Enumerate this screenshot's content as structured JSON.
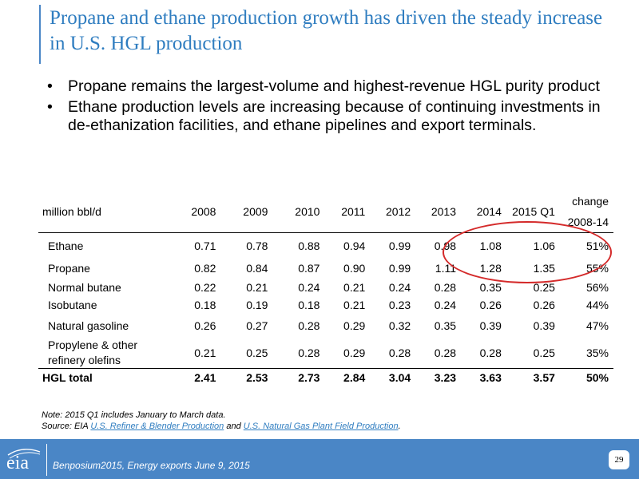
{
  "slide": {
    "title": "Propane and ethane production growth has driven the steady increase in U.S. HGL production",
    "bullets": [
      "Propane remains the largest-volume and highest-revenue HGL purity product",
      "Ethane production levels are increasing because of continuing investments in de-ethanization facilities, and ethane pipelines and export terminals."
    ]
  },
  "table": {
    "unit_label": "million bbl/d",
    "columns": [
      "2008",
      "2009",
      "2010",
      "2011",
      "2012",
      "2013",
      "2014",
      "2015 Q1"
    ],
    "change_header": [
      "change",
      "2008-14"
    ],
    "rows": [
      {
        "name": "Ethane",
        "values": [
          "0.71",
          "0.78",
          "0.88",
          "0.94",
          "0.99",
          "0.98",
          "1.08",
          "1.06"
        ],
        "change": "51%"
      },
      {
        "name": "Propane",
        "values": [
          "0.82",
          "0.84",
          "0.87",
          "0.90",
          "0.99",
          "1.11",
          "1.28",
          "1.35"
        ],
        "change": "55%"
      },
      {
        "name": "Normal butane",
        "values": [
          "0.22",
          "0.21",
          "0.24",
          "0.21",
          "0.24",
          "0.28",
          "0.35",
          "0.25"
        ],
        "change": "56%"
      },
      {
        "name": "Isobutane",
        "values": [
          "0.18",
          "0.19",
          "0.18",
          "0.21",
          "0.23",
          "0.24",
          "0.26",
          "0.26"
        ],
        "change": "44%"
      },
      {
        "name": "Natural gasoline",
        "values": [
          "0.26",
          "0.27",
          "0.28",
          "0.29",
          "0.32",
          "0.35",
          "0.39",
          "0.39"
        ],
        "change": "47%"
      },
      {
        "name_lines": [
          "Propylene & other",
          "refinery olefins"
        ],
        "values": [
          "0.21",
          "0.25",
          "0.28",
          "0.29",
          "0.28",
          "0.28",
          "0.28",
          "0.25"
        ],
        "change": "35%"
      }
    ],
    "total": {
      "name": "HGL total",
      "values": [
        "2.41",
        "2.53",
        "2.73",
        "2.84",
        "3.04",
        "3.23",
        "3.63",
        "3.57"
      ],
      "change": "50%"
    }
  },
  "notes": {
    "note_line": "Note: 2015 Q1 includes January to March data.",
    "source_prefix": "Source: EIA",
    "link1": "U.S. Refiner & Blender Production",
    "source_and": "and",
    "link2": "U.S. Natural Gas Plant Field Production",
    "source_end": "."
  },
  "footer": {
    "logo": "eia",
    "text": "Benposium2015, Energy exports June 9, 2015",
    "page_number": "29"
  },
  "colors": {
    "title": "#2f7dc0",
    "footer_bar": "#4a86c6",
    "highlight_ring": "#d42a2a"
  }
}
